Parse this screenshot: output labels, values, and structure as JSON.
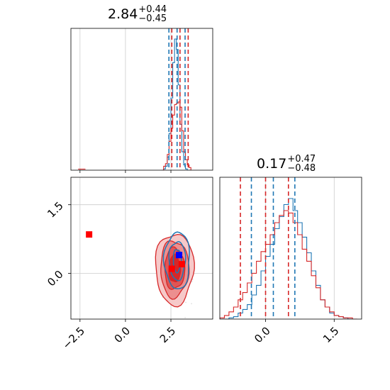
{
  "chart_data": {
    "type": "corner",
    "colors": {
      "series_a": "#1f77b4",
      "series_b": "#d62728",
      "marker_blue": "#0000ff",
      "marker_red": "#ff0000",
      "grid": "#cccccc"
    },
    "grid": true,
    "params": [
      {
        "title": {
          "value": "2.84",
          "upper": "+0.44",
          "lower": "−0.45"
        },
        "range": [
          -3.0,
          4.8
        ],
        "ticks": [
          -2.5,
          0.0,
          2.5
        ],
        "tick_labels": [
          "−2.5",
          "0.0",
          "2.5"
        ]
      },
      {
        "title": {
          "value": "0.17",
          "upper": "+0.47",
          "lower": "−0.48"
        },
        "range": [
          -1.0,
          2.1
        ],
        "ticks": [
          0.0,
          1.5
        ],
        "tick_labels": [
          "0.0",
          "1.5"
        ]
      }
    ],
    "hist_x": {
      "bin_edges": [
        2.0,
        2.1,
        2.2,
        2.3,
        2.4,
        2.5,
        2.6,
        2.7,
        2.8,
        2.9,
        3.0,
        3.1,
        3.2,
        3.3,
        3.4,
        3.5,
        3.6
      ],
      "series_a": [
        0,
        1,
        3,
        10,
        28,
        55,
        82,
        100,
        92,
        65,
        35,
        14,
        4,
        1,
        0,
        0
      ],
      "series_b": [
        0,
        3,
        5,
        12,
        22,
        32,
        42,
        50,
        51,
        52,
        48,
        30,
        14,
        8,
        4,
        2
      ],
      "series_b_outliers": [
        {
          "x": -2.5,
          "v": 1
        },
        {
          "x": -2.3,
          "v": 1
        }
      ],
      "quantiles_a": [
        2.39,
        2.84,
        3.28
      ],
      "quantiles_b": [
        2.55,
        3.0,
        3.45
      ]
    },
    "hist_y": {
      "bin_edges": [
        -1.0,
        -0.9,
        -0.8,
        -0.7,
        -0.6,
        -0.5,
        -0.4,
        -0.3,
        -0.2,
        -0.1,
        0.0,
        0.1,
        0.2,
        0.3,
        0.4,
        0.5,
        0.6,
        0.7,
        0.8,
        0.9,
        1.0,
        1.1,
        1.2,
        1.3,
        1.4,
        1.5,
        1.6,
        1.7,
        1.8,
        1.9,
        2.0
      ],
      "series_a": [
        0,
        0,
        1,
        2,
        5,
        8,
        12,
        20,
        28,
        40,
        52,
        62,
        75,
        85,
        95,
        100,
        90,
        80,
        68,
        55,
        40,
        28,
        16,
        10,
        5,
        3,
        2,
        1,
        0,
        0
      ],
      "series_b": [
        1,
        3,
        6,
        10,
        16,
        22,
        30,
        38,
        48,
        56,
        62,
        70,
        80,
        86,
        90,
        88,
        80,
        70,
        58,
        48,
        36,
        26,
        16,
        10,
        6,
        3,
        2,
        1,
        1,
        0
      ],
      "quantiles_a": [
        -0.31,
        0.17,
        0.64
      ],
      "quantiles_b": [
        -0.55,
        0.0,
        0.5
      ]
    },
    "joint": {
      "samples_center": [
        2.75,
        0.1
      ],
      "contour_levels_center": [
        2.7,
        0.1
      ],
      "contour_radii": [
        [
          1.05,
          0.78
        ],
        [
          0.78,
          0.62
        ],
        [
          0.55,
          0.45
        ],
        [
          0.32,
          0.3
        ]
      ],
      "markers": [
        {
          "x": -2.0,
          "y": 0.85,
          "color": "red"
        },
        {
          "x": 2.55,
          "y": 0.1,
          "color": "red"
        },
        {
          "x": 3.1,
          "y": 0.2,
          "color": "red"
        },
        {
          "x": 2.95,
          "y": 0.4,
          "color": "blue"
        }
      ]
    }
  }
}
